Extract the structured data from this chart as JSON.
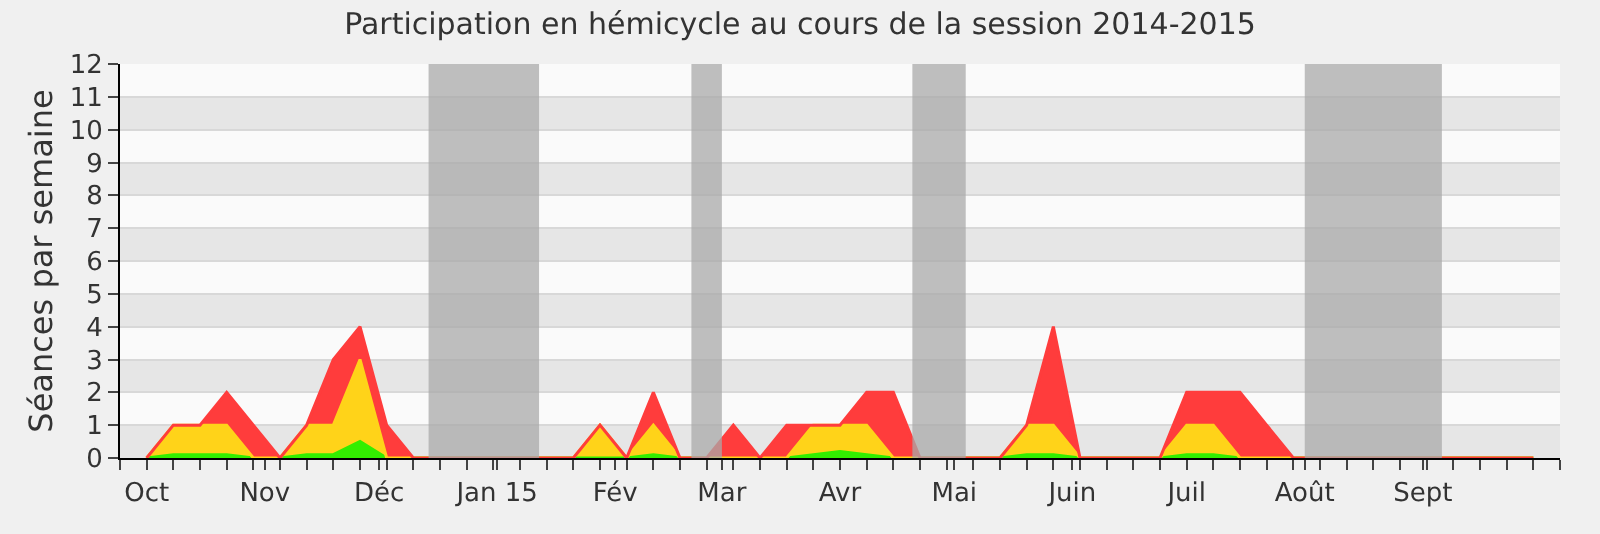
{
  "chart_data": {
    "type": "area",
    "stacked": true,
    "title": "Participation en hémicycle au cours de la session 2014-2015",
    "ylabel": "Séances par semaine",
    "x": [
      "2014-10-01",
      "2014-10-08",
      "2014-10-15",
      "2014-10-22",
      "2014-10-29",
      "2014-11-05",
      "2014-11-12",
      "2014-11-19",
      "2014-11-26",
      "2014-12-03",
      "2014-12-10",
      "2014-12-17",
      "2014-12-24",
      "2014-12-31",
      "2015-01-07",
      "2015-01-14",
      "2015-01-21",
      "2015-01-28",
      "2015-02-04",
      "2015-02-11",
      "2015-02-18",
      "2015-02-25",
      "2015-03-04",
      "2015-03-11",
      "2015-03-18",
      "2015-03-25",
      "2015-04-01",
      "2015-04-08",
      "2015-04-15",
      "2015-04-22",
      "2015-04-29",
      "2015-05-06",
      "2015-05-13",
      "2015-05-20",
      "2015-05-27",
      "2015-06-03",
      "2015-06-10",
      "2015-06-17",
      "2015-06-24",
      "2015-07-01",
      "2015-07-08",
      "2015-07-15",
      "2015-07-22",
      "2015-07-29",
      "2015-08-05",
      "2015-08-12",
      "2015-08-19",
      "2015-08-26",
      "2015-09-02",
      "2015-09-09",
      "2015-09-16",
      "2015-09-23",
      "2015-09-30"
    ],
    "series": [
      {
        "color": "#33ee00",
        "values": [
          0,
          0.1,
          0.1,
          0.1,
          0,
          0,
          0.1,
          0.1,
          0.5,
          0,
          0,
          0,
          0,
          0,
          0,
          0,
          0,
          0,
          0,
          0.1,
          0,
          0,
          0,
          0,
          0,
          0.1,
          0.2,
          0.1,
          0,
          0,
          0,
          0,
          0,
          0.1,
          0.1,
          0,
          0,
          0,
          0,
          0.1,
          0.1,
          0,
          0,
          0,
          0,
          0,
          0,
          0,
          0,
          0,
          0,
          0,
          0
        ]
      },
      {
        "color": "#ffd319",
        "values": [
          0,
          0.9,
          0.9,
          0.9,
          0,
          0,
          0.9,
          0.9,
          2.5,
          0,
          0,
          0,
          0,
          0,
          0,
          0,
          0,
          1,
          0,
          0.9,
          0,
          0,
          0,
          0,
          0,
          0.9,
          0.8,
          0.9,
          0,
          0,
          0,
          0,
          0,
          0.9,
          0.9,
          0,
          0,
          0,
          0,
          0.9,
          0.9,
          0,
          0,
          0,
          0,
          0,
          0,
          0,
          0,
          0,
          0,
          0,
          0
        ]
      },
      {
        "color": "#ff3c3c",
        "values": [
          0,
          0,
          0,
          1,
          1,
          0,
          0,
          2,
          1,
          1,
          0,
          0,
          0,
          0,
          0,
          0,
          0,
          0,
          0,
          1,
          0,
          0,
          1,
          0,
          1,
          0,
          0,
          1,
          2,
          0,
          0,
          0,
          0,
          0,
          3,
          0,
          0,
          0,
          0,
          1,
          1,
          2,
          1,
          0,
          0,
          0,
          0,
          0,
          0,
          0,
          0,
          0,
          0
        ]
      }
    ],
    "xlim": [
      "2014-09-24",
      "2015-10-07"
    ],
    "xticks": [
      {
        "value": "2014-09-24",
        "label": null
      },
      {
        "value": "2014-10-01",
        "label": "Oct"
      },
      {
        "value": "2014-10-08",
        "label": null
      },
      {
        "value": "2014-10-15",
        "label": null
      },
      {
        "value": "2014-10-22",
        "label": null
      },
      {
        "value": "2014-10-29",
        "label": null
      },
      {
        "value": "2014-11-01",
        "label": "Nov"
      },
      {
        "value": "2014-11-05",
        "label": null
      },
      {
        "value": "2014-11-12",
        "label": null
      },
      {
        "value": "2014-11-19",
        "label": null
      },
      {
        "value": "2014-11-26",
        "label": null
      },
      {
        "value": "2014-12-01",
        "label": "Déc"
      },
      {
        "value": "2014-12-03",
        "label": null
      },
      {
        "value": "2014-12-10",
        "label": null
      },
      {
        "value": "2014-12-17",
        "label": null
      },
      {
        "value": "2014-12-24",
        "label": null
      },
      {
        "value": "2014-12-31",
        "label": null
      },
      {
        "value": "2015-01-01",
        "label": "Jan 15"
      },
      {
        "value": "2015-01-07",
        "label": null
      },
      {
        "value": "2015-01-14",
        "label": null
      },
      {
        "value": "2015-01-21",
        "label": null
      },
      {
        "value": "2015-01-28",
        "label": null
      },
      {
        "value": "2015-02-01",
        "label": "Fév"
      },
      {
        "value": "2015-02-04",
        "label": null
      },
      {
        "value": "2015-02-11",
        "label": null
      },
      {
        "value": "2015-02-18",
        "label": null
      },
      {
        "value": "2015-02-25",
        "label": null
      },
      {
        "value": "2015-03-01",
        "label": "Mar"
      },
      {
        "value": "2015-03-04",
        "label": null
      },
      {
        "value": "2015-03-11",
        "label": null
      },
      {
        "value": "2015-03-18",
        "label": null
      },
      {
        "value": "2015-03-25",
        "label": null
      },
      {
        "value": "2015-04-01",
        "label": "Avr"
      },
      {
        "value": "2015-04-08",
        "label": null
      },
      {
        "value": "2015-04-15",
        "label": null
      },
      {
        "value": "2015-04-22",
        "label": null
      },
      {
        "value": "2015-04-29",
        "label": null
      },
      {
        "value": "2015-05-01",
        "label": "Mai"
      },
      {
        "value": "2015-05-06",
        "label": null
      },
      {
        "value": "2015-05-13",
        "label": null
      },
      {
        "value": "2015-05-20",
        "label": null
      },
      {
        "value": "2015-05-27",
        "label": null
      },
      {
        "value": "2015-06-01",
        "label": "Juin"
      },
      {
        "value": "2015-06-03",
        "label": null
      },
      {
        "value": "2015-06-10",
        "label": null
      },
      {
        "value": "2015-06-17",
        "label": null
      },
      {
        "value": "2015-06-24",
        "label": null
      },
      {
        "value": "2015-07-01",
        "label": "Juil"
      },
      {
        "value": "2015-07-08",
        "label": null
      },
      {
        "value": "2015-07-15",
        "label": null
      },
      {
        "value": "2015-07-22",
        "label": null
      },
      {
        "value": "2015-07-29",
        "label": null
      },
      {
        "value": "2015-08-01",
        "label": "Août"
      },
      {
        "value": "2015-08-05",
        "label": null
      },
      {
        "value": "2015-08-12",
        "label": null
      },
      {
        "value": "2015-08-19",
        "label": null
      },
      {
        "value": "2015-08-26",
        "label": null
      },
      {
        "value": "2015-09-01",
        "label": "Sept"
      },
      {
        "value": "2015-09-02",
        "label": null
      },
      {
        "value": "2015-09-09",
        "label": null
      },
      {
        "value": "2015-09-16",
        "label": null
      },
      {
        "value": "2015-09-23",
        "label": null
      },
      {
        "value": "2015-09-30",
        "label": null
      },
      {
        "value": "2015-10-07",
        "label": null
      }
    ],
    "ylim": [
      0,
      12
    ],
    "yticks": [
      0,
      1,
      2,
      3,
      4,
      5,
      6,
      7,
      8,
      9,
      10,
      11,
      12
    ],
    "grid": "y",
    "bands": [
      {
        "axis": "x",
        "from": "2014-12-14",
        "to": "2015-01-12",
        "color": "#aaaaaa"
      },
      {
        "axis": "x",
        "from": "2015-02-21",
        "to": "2015-03-01",
        "color": "#aaaaaa"
      },
      {
        "axis": "x",
        "from": "2015-04-20",
        "to": "2015-05-04",
        "color": "#aaaaaa"
      },
      {
        "axis": "x",
        "from": "2015-08-01",
        "to": "2015-09-06",
        "color": "#aaaaaa"
      }
    ]
  }
}
